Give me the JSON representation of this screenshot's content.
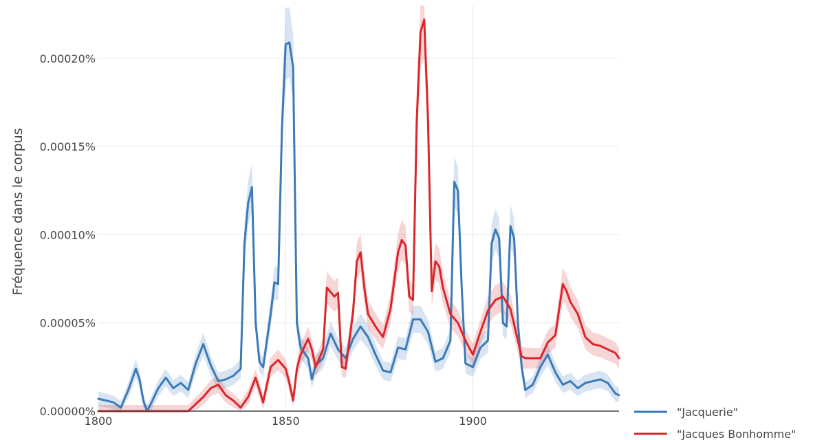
{
  "chart_data": {
    "type": "line",
    "title": "",
    "xlabel": "",
    "ylabel": "Fréquence dans le corpus",
    "xlim": [
      1800,
      1939
    ],
    "ylim": [
      0,
      0.00023
    ],
    "x_ticks": [
      {
        "value": 1800,
        "label": "1800"
      },
      {
        "value": 1850,
        "label": "1850"
      },
      {
        "value": 1900,
        "label": "1900"
      }
    ],
    "y_ticks": [
      {
        "value": 0,
        "label": "0.00000%"
      },
      {
        "value": 5e-05,
        "label": "0.00005%"
      },
      {
        "value": 0.0001,
        "label": "0.00010%"
      },
      {
        "value": 0.00015,
        "label": "0.00015%"
      },
      {
        "value": 0.0002,
        "label": "0.00020%"
      }
    ],
    "grid": true,
    "legend_position": "bottom-right",
    "confidence_band": true,
    "series": [
      {
        "name": "\"Jacquerie\"",
        "color": "#3a7ab8",
        "band_color": "#3a7ab8",
        "points": [
          [
            1800,
            7e-06
          ],
          [
            1802,
            6e-06
          ],
          [
            1804,
            5e-06
          ],
          [
            1806,
            2e-06
          ],
          [
            1808,
            1.2e-05
          ],
          [
            1810,
            2.4e-05
          ],
          [
            1811,
            1.8e-05
          ],
          [
            1812,
            6e-06
          ],
          [
            1813,
            0.0
          ],
          [
            1814,
            4e-06
          ],
          [
            1816,
            1.3e-05
          ],
          [
            1818,
            1.9e-05
          ],
          [
            1820,
            1.3e-05
          ],
          [
            1822,
            1.6e-05
          ],
          [
            1824,
            1.2e-05
          ],
          [
            1826,
            2.7e-05
          ],
          [
            1828,
            3.8e-05
          ],
          [
            1830,
            2.6e-05
          ],
          [
            1832,
            1.7e-05
          ],
          [
            1834,
            1.8e-05
          ],
          [
            1836,
            2e-05
          ],
          [
            1838,
            2.4e-05
          ],
          [
            1839,
            9.5e-05
          ],
          [
            1840,
            0.000118
          ],
          [
            1841,
            0.000127
          ],
          [
            1842,
            5e-05
          ],
          [
            1843,
            2.8e-05
          ],
          [
            1844,
            2.5e-05
          ],
          [
            1846,
            5.5e-05
          ],
          [
            1847,
            7.3e-05
          ],
          [
            1848,
            7.2e-05
          ],
          [
            1849,
            0.00016
          ],
          [
            1850,
            0.000208
          ],
          [
            1851,
            0.000209
          ],
          [
            1852,
            0.000195
          ],
          [
            1853,
            5e-05
          ],
          [
            1854,
            3.6e-05
          ],
          [
            1856,
            3e-05
          ],
          [
            1857,
            1.8e-05
          ],
          [
            1858,
            2.6e-05
          ],
          [
            1860,
            3e-05
          ],
          [
            1862,
            4.4e-05
          ],
          [
            1864,
            3.5e-05
          ],
          [
            1866,
            3e-05
          ],
          [
            1868,
            4.1e-05
          ],
          [
            1870,
            4.8e-05
          ],
          [
            1872,
            4.2e-05
          ],
          [
            1874,
            3.2e-05
          ],
          [
            1876,
            2.3e-05
          ],
          [
            1878,
            2.2e-05
          ],
          [
            1880,
            3.6e-05
          ],
          [
            1882,
            3.5e-05
          ],
          [
            1884,
            5.2e-05
          ],
          [
            1886,
            5.2e-05
          ],
          [
            1888,
            4.5e-05
          ],
          [
            1890,
            2.8e-05
          ],
          [
            1892,
            3e-05
          ],
          [
            1894,
            4e-05
          ],
          [
            1895,
            0.00013
          ],
          [
            1896,
            0.000125
          ],
          [
            1897,
            7e-05
          ],
          [
            1898,
            2.7e-05
          ],
          [
            1900,
            2.5e-05
          ],
          [
            1902,
            3.6e-05
          ],
          [
            1904,
            4e-05
          ],
          [
            1905,
            9.5e-05
          ],
          [
            1906,
            0.000103
          ],
          [
            1907,
            9.8e-05
          ],
          [
            1908,
            5e-05
          ],
          [
            1909,
            4.8e-05
          ],
          [
            1910,
            0.000105
          ],
          [
            1911,
            9.8e-05
          ],
          [
            1912,
            5e-05
          ],
          [
            1913,
            2.5e-05
          ],
          [
            1914,
            1.2e-05
          ],
          [
            1916,
            1.5e-05
          ],
          [
            1918,
            2.5e-05
          ],
          [
            1920,
            3.2e-05
          ],
          [
            1922,
            2.2e-05
          ],
          [
            1924,
            1.5e-05
          ],
          [
            1926,
            1.7e-05
          ],
          [
            1928,
            1.3e-05
          ],
          [
            1930,
            1.6e-05
          ],
          [
            1932,
            1.7e-05
          ],
          [
            1934,
            1.8e-05
          ],
          [
            1936,
            1.6e-05
          ],
          [
            1938,
            1e-05
          ],
          [
            1939,
            9e-06
          ]
        ]
      },
      {
        "name": "\"Jacques Bonhomme\"",
        "color": "#d9262b",
        "band_color": "#d9262b",
        "points": [
          [
            1800,
            0.0
          ],
          [
            1804,
            0.0
          ],
          [
            1808,
            0.0
          ],
          [
            1812,
            0.0
          ],
          [
            1816,
            0.0
          ],
          [
            1820,
            0.0
          ],
          [
            1824,
            0.0
          ],
          [
            1826,
            4e-06
          ],
          [
            1828,
            8e-06
          ],
          [
            1830,
            1.3e-05
          ],
          [
            1832,
            1.5e-05
          ],
          [
            1834,
            9e-06
          ],
          [
            1836,
            6e-06
          ],
          [
            1838,
            2e-06
          ],
          [
            1840,
            8e-06
          ],
          [
            1842,
            1.9e-05
          ],
          [
            1843,
            1.2e-05
          ],
          [
            1844,
            5e-06
          ],
          [
            1846,
            2.5e-05
          ],
          [
            1848,
            2.9e-05
          ],
          [
            1850,
            2.4e-05
          ],
          [
            1851,
            1.6e-05
          ],
          [
            1852,
            6e-06
          ],
          [
            1853,
            2.4e-05
          ],
          [
            1854,
            3.2e-05
          ],
          [
            1856,
            4.1e-05
          ],
          [
            1857,
            3.5e-05
          ],
          [
            1858,
            2.5e-05
          ],
          [
            1860,
            3.5e-05
          ],
          [
            1861,
            7e-05
          ],
          [
            1863,
            6.5e-05
          ],
          [
            1864,
            6.7e-05
          ],
          [
            1865,
            2.5e-05
          ],
          [
            1866,
            2.4e-05
          ],
          [
            1868,
            5.6e-05
          ],
          [
            1869,
            8.5e-05
          ],
          [
            1870,
            9e-05
          ],
          [
            1871,
            7e-05
          ],
          [
            1872,
            5.5e-05
          ],
          [
            1874,
            4.8e-05
          ],
          [
            1876,
            4.2e-05
          ],
          [
            1878,
            5.8e-05
          ],
          [
            1880,
            9e-05
          ],
          [
            1881,
            9.7e-05
          ],
          [
            1882,
            9.4e-05
          ],
          [
            1883,
            6.5e-05
          ],
          [
            1884,
            6.3e-05
          ],
          [
            1885,
            0.000165
          ],
          [
            1886,
            0.000215
          ],
          [
            1887,
            0.000222
          ],
          [
            1888,
            0.000165
          ],
          [
            1889,
            6.8e-05
          ],
          [
            1890,
            8.5e-05
          ],
          [
            1891,
            8.2e-05
          ],
          [
            1892,
            7e-05
          ],
          [
            1894,
            5.5e-05
          ],
          [
            1896,
            5e-05
          ],
          [
            1898,
            4e-05
          ],
          [
            1900,
            3.2e-05
          ],
          [
            1902,
            4.5e-05
          ],
          [
            1904,
            5.7e-05
          ],
          [
            1906,
            6.3e-05
          ],
          [
            1908,
            6.5e-05
          ],
          [
            1910,
            5.8e-05
          ],
          [
            1912,
            4e-05
          ],
          [
            1913,
            3.1e-05
          ],
          [
            1914,
            3e-05
          ],
          [
            1916,
            3e-05
          ],
          [
            1918,
            3e-05
          ],
          [
            1920,
            3.9e-05
          ],
          [
            1922,
            4.3e-05
          ],
          [
            1924,
            7.2e-05
          ],
          [
            1925,
            6.8e-05
          ],
          [
            1926,
            6.2e-05
          ],
          [
            1928,
            5.5e-05
          ],
          [
            1930,
            4.2e-05
          ],
          [
            1932,
            3.8e-05
          ],
          [
            1934,
            3.7e-05
          ],
          [
            1936,
            3.5e-05
          ],
          [
            1938,
            3.3e-05
          ],
          [
            1939,
            3e-05
          ]
        ]
      }
    ]
  }
}
